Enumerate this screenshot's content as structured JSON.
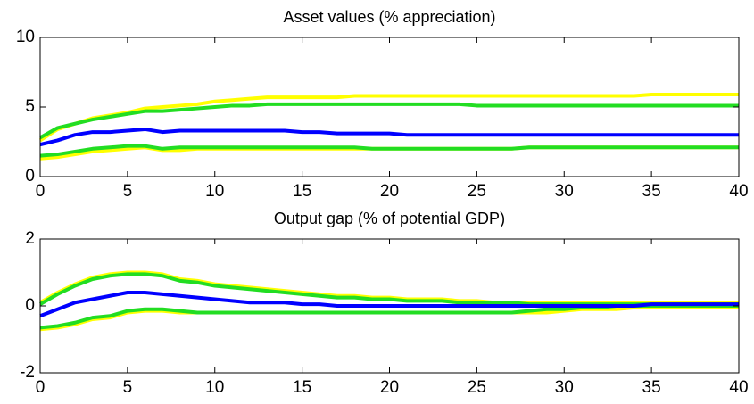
{
  "chart_data": [
    {
      "type": "line",
      "title": "Asset values (% appreciation)",
      "x": [
        0,
        1,
        2,
        3,
        4,
        5,
        6,
        7,
        8,
        9,
        10,
        11,
        12,
        13,
        14,
        15,
        16,
        17,
        18,
        19,
        20,
        21,
        22,
        23,
        24,
        25,
        26,
        27,
        28,
        29,
        30,
        31,
        32,
        33,
        34,
        35,
        36,
        37,
        38,
        39,
        40
      ],
      "xlim": [
        0,
        40
      ],
      "xticks": [
        0,
        5,
        10,
        15,
        20,
        25,
        30,
        35,
        40
      ],
      "ylim": [
        0,
        10
      ],
      "yticks": [
        0,
        5,
        10
      ],
      "series": [
        {
          "color": "#ffff00",
          "values": [
            2.6,
            3.4,
            3.8,
            4.2,
            4.4,
            4.6,
            4.9,
            5.0,
            5.1,
            5.2,
            5.4,
            5.5,
            5.6,
            5.7,
            5.7,
            5.7,
            5.7,
            5.7,
            5.8,
            5.8,
            5.8,
            5.8,
            5.8,
            5.8,
            5.8,
            5.8,
            5.8,
            5.8,
            5.8,
            5.8,
            5.8,
            5.8,
            5.8,
            5.8,
            5.8,
            5.9,
            5.9,
            5.9,
            5.9,
            5.9,
            5.9
          ]
        },
        {
          "color": "#ffff00",
          "values": [
            1.3,
            1.4,
            1.6,
            1.8,
            1.9,
            2.0,
            2.1,
            1.9,
            1.9,
            2.0,
            2.0,
            2.0,
            2.0,
            2.0,
            2.0,
            2.0,
            2.0,
            2.0,
            2.0,
            2.0,
            2.0,
            2.0,
            2.0,
            2.0,
            2.0,
            2.0,
            2.0,
            2.0,
            2.1,
            2.1,
            2.1,
            2.1,
            2.1,
            2.1,
            2.1,
            2.1,
            2.1,
            2.1,
            2.1,
            2.1,
            2.1
          ]
        },
        {
          "color": "#22dd22",
          "values": [
            2.8,
            3.5,
            3.8,
            4.1,
            4.3,
            4.5,
            4.7,
            4.7,
            4.8,
            4.9,
            5.0,
            5.1,
            5.1,
            5.2,
            5.2,
            5.2,
            5.2,
            5.2,
            5.2,
            5.2,
            5.2,
            5.2,
            5.2,
            5.2,
            5.2,
            5.1,
            5.1,
            5.1,
            5.1,
            5.1,
            5.1,
            5.1,
            5.1,
            5.1,
            5.1,
            5.1,
            5.1,
            5.1,
            5.1,
            5.1,
            5.1
          ]
        },
        {
          "color": "#22dd22",
          "values": [
            1.5,
            1.6,
            1.8,
            2.0,
            2.1,
            2.2,
            2.2,
            2.0,
            2.1,
            2.1,
            2.1,
            2.1,
            2.1,
            2.1,
            2.1,
            2.1,
            2.1,
            2.1,
            2.1,
            2.0,
            2.0,
            2.0,
            2.0,
            2.0,
            2.0,
            2.0,
            2.0,
            2.0,
            2.1,
            2.1,
            2.1,
            2.1,
            2.1,
            2.1,
            2.1,
            2.1,
            2.1,
            2.1,
            2.1,
            2.1,
            2.1
          ]
        },
        {
          "color": "#0000ff",
          "values": [
            2.3,
            2.6,
            3.0,
            3.2,
            3.2,
            3.3,
            3.4,
            3.2,
            3.3,
            3.3,
            3.3,
            3.3,
            3.3,
            3.3,
            3.3,
            3.2,
            3.2,
            3.1,
            3.1,
            3.1,
            3.1,
            3.0,
            3.0,
            3.0,
            3.0,
            3.0,
            3.0,
            3.0,
            3.0,
            3.0,
            3.0,
            3.0,
            3.0,
            3.0,
            3.0,
            3.0,
            3.0,
            3.0,
            3.0,
            3.0,
            3.0
          ]
        }
      ]
    },
    {
      "type": "line",
      "title": "Output gap (% of potential GDP)",
      "x": [
        0,
        1,
        2,
        3,
        4,
        5,
        6,
        7,
        8,
        9,
        10,
        11,
        12,
        13,
        14,
        15,
        16,
        17,
        18,
        19,
        20,
        21,
        22,
        23,
        24,
        25,
        26,
        27,
        28,
        29,
        30,
        31,
        32,
        33,
        34,
        35,
        36,
        37,
        38,
        39,
        40
      ],
      "xlim": [
        0,
        40
      ],
      "xticks": [
        0,
        5,
        10,
        15,
        20,
        25,
        30,
        35,
        40
      ],
      "ylim": [
        -2,
        2
      ],
      "yticks": [
        -2,
        0,
        2
      ],
      "series": [
        {
          "color": "#ffff00",
          "values": [
            0.1,
            0.4,
            0.65,
            0.85,
            0.95,
            1.0,
            1.0,
            0.95,
            0.8,
            0.75,
            0.65,
            0.6,
            0.55,
            0.5,
            0.45,
            0.4,
            0.35,
            0.3,
            0.3,
            0.25,
            0.25,
            0.2,
            0.2,
            0.2,
            0.15,
            0.15,
            0.1,
            0.1,
            0.1,
            0.1,
            0.1,
            0.1,
            0.1,
            0.1,
            0.1,
            0.1,
            0.1,
            0.1,
            0.1,
            0.1,
            0.1
          ]
        },
        {
          "color": "#ffff00",
          "values": [
            -0.7,
            -0.65,
            -0.55,
            -0.4,
            -0.35,
            -0.2,
            -0.15,
            -0.15,
            -0.2,
            -0.2,
            -0.2,
            -0.2,
            -0.2,
            -0.2,
            -0.2,
            -0.2,
            -0.2,
            -0.2,
            -0.2,
            -0.2,
            -0.2,
            -0.2,
            -0.2,
            -0.2,
            -0.2,
            -0.2,
            -0.2,
            -0.2,
            -0.2,
            -0.2,
            -0.15,
            -0.1,
            -0.1,
            -0.1,
            -0.05,
            -0.05,
            -0.05,
            -0.05,
            -0.05,
            -0.05,
            -0.05
          ]
        },
        {
          "color": "#22dd22",
          "values": [
            0.05,
            0.35,
            0.6,
            0.8,
            0.9,
            0.95,
            0.95,
            0.9,
            0.75,
            0.7,
            0.6,
            0.55,
            0.5,
            0.45,
            0.4,
            0.35,
            0.3,
            0.25,
            0.25,
            0.2,
            0.2,
            0.15,
            0.15,
            0.15,
            0.1,
            0.1,
            0.1,
            0.1,
            0.05,
            0.05,
            0.05,
            0.05,
            0.05,
            0.05,
            0.05,
            0.05,
            0.05,
            0.05,
            0.05,
            0.05,
            0.05
          ]
        },
        {
          "color": "#22dd22",
          "values": [
            -0.65,
            -0.6,
            -0.5,
            -0.35,
            -0.3,
            -0.15,
            -0.1,
            -0.1,
            -0.15,
            -0.2,
            -0.2,
            -0.2,
            -0.2,
            -0.2,
            -0.2,
            -0.2,
            -0.2,
            -0.2,
            -0.2,
            -0.2,
            -0.2,
            -0.2,
            -0.2,
            -0.2,
            -0.2,
            -0.2,
            -0.2,
            -0.2,
            -0.15,
            -0.1,
            -0.1,
            -0.05,
            -0.05,
            0,
            0,
            0,
            0,
            0,
            0,
            0,
            0
          ]
        },
        {
          "color": "#0000ff",
          "values": [
            -0.3,
            -0.1,
            0.1,
            0.2,
            0.3,
            0.4,
            0.4,
            0.35,
            0.3,
            0.25,
            0.2,
            0.15,
            0.1,
            0.1,
            0.1,
            0.05,
            0.05,
            0,
            0,
            0,
            0,
            0,
            0,
            0,
            0,
            0,
            0,
            0,
            0,
            0,
            0,
            0,
            0,
            0,
            0,
            0.05,
            0.05,
            0.05,
            0.05,
            0.05,
            0.05
          ]
        }
      ]
    }
  ]
}
